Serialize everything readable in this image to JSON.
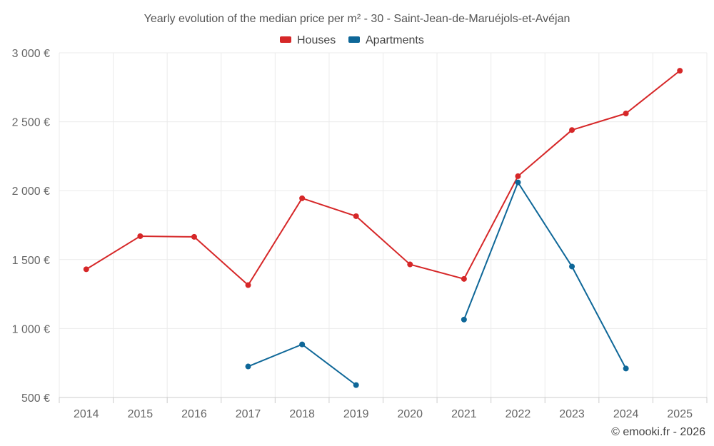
{
  "chart_data": {
    "type": "line",
    "title": "Yearly evolution of the median price per m² - 30 - Saint-Jean-de-Maruéjols-et-Avéjan",
    "xlabel": "",
    "ylabel": "",
    "categories": [
      "2014",
      "2015",
      "2016",
      "2017",
      "2018",
      "2019",
      "2020",
      "2021",
      "2022",
      "2023",
      "2024",
      "2025"
    ],
    "ylim": [
      500,
      3000
    ],
    "yticks": [
      500,
      1000,
      1500,
      2000,
      2500,
      3000
    ],
    "ytick_labels": [
      "500 €",
      "1 000 €",
      "1 500 €",
      "2 000 €",
      "2 500 €",
      "3 000 €"
    ],
    "grid": true,
    "legend_position": "top-center",
    "series": [
      {
        "name": "Houses",
        "color": "#d62728",
        "values": [
          1430,
          1670,
          1665,
          1315,
          1945,
          1815,
          1465,
          1360,
          2105,
          2440,
          2560,
          2870
        ]
      },
      {
        "name": "Apartments",
        "color": "#0e6798",
        "values": [
          null,
          null,
          null,
          725,
          885,
          590,
          null,
          1065,
          2060,
          1450,
          710,
          null
        ]
      }
    ]
  },
  "credit": "© emooki.fr - 2026"
}
